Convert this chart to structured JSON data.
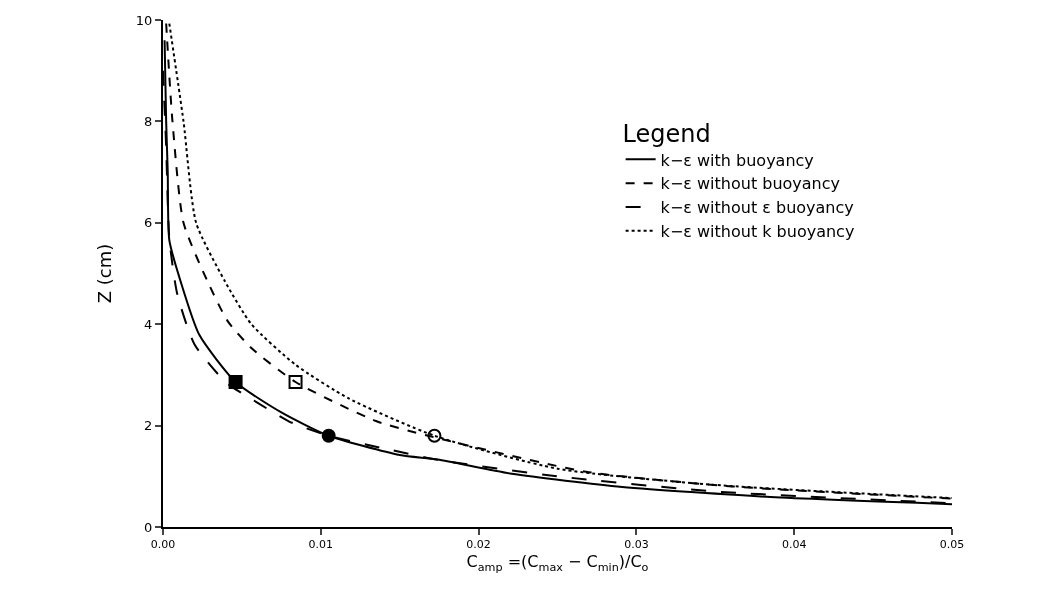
{
  "chart_data": {
    "type": "line",
    "xlabel": "C$_{amp}$ =(C$_{max}$ − C$_{min}$)/C$_{o}$",
    "ylabel": "Z (cm)",
    "legend_title": "Legend",
    "legend": "right",
    "grid": false,
    "xlim": [
      0,
      0.05
    ],
    "xticks": [
      {
        "value": 0,
        "label": "0.00"
      },
      0.01,
      0.02,
      0.03,
      0.04,
      0.05
    ],
    "ylim": [
      0,
      10
    ],
    "yticks": [
      0,
      2,
      4,
      6,
      8,
      10
    ],
    "series": [
      {
        "name": "k−ε with buoyancy",
        "color": "#000000",
        "line_style": "solid",
        "x": [
          0.0001,
          0.0002,
          0.0003,
          0.0004,
          0.0011,
          0.0023,
          0.0046,
          0.0075,
          0.0105,
          0.015,
          0.0174,
          0.0221,
          0.0291,
          0.0385,
          0.05
        ],
        "values": [
          9.6,
          8,
          7,
          5.66,
          4.86,
          3.79,
          2.86,
          2.26,
          1.8,
          1.42,
          1.33,
          1.05,
          0.79,
          0.59,
          0.45
        ]
      },
      {
        "name": "k−ε without buoyancy",
        "color": "#000000",
        "line_style": "dashed",
        "x": [
          0.0002,
          0.0006,
          0.0013,
          0.0028,
          0.0041,
          0.0056,
          0.0084,
          0.0135,
          0.0168,
          0.0268,
          0.0361,
          0.05
        ],
        "values": [
          9.93,
          8,
          6,
          4.86,
          4.06,
          3.53,
          2.86,
          2.09,
          1.8,
          1.09,
          0.8,
          0.56
        ]
      },
      {
        "name": "k−ε without ε buoyancy",
        "color": "#000000",
        "line_style": "long-dashed",
        "x": [
          0,
          0.0002,
          0.0004,
          0.0009,
          0.002,
          0.004,
          0.006,
          0.008,
          0.0105,
          0.014,
          0.0175,
          0.025,
          0.035,
          0.05
        ],
        "values": [
          9,
          7.5,
          5.7,
          4.6,
          3.6,
          2.85,
          2.45,
          2.08,
          1.8,
          1.55,
          1.32,
          1,
          0.7,
          0.47
        ]
      },
      {
        "name": "k−ε without k buoyancy",
        "color": "#000000",
        "line_style": "dotted",
        "x": [
          0.0004,
          0.0013,
          0.0021,
          0.0039,
          0.0056,
          0.0084,
          0.0118,
          0.0172,
          0.025,
          0.035,
          0.05
        ],
        "values": [
          9.93,
          8,
          6,
          4.86,
          4,
          3.2,
          2.53,
          1.8,
          1.15,
          0.83,
          0.57
        ]
      },
      {
        "type": "scatter",
        "marker": "square",
        "color": "#000000",
        "x": [
          0.0046
        ],
        "values": [
          2.86
        ]
      },
      {
        "type": "scatter",
        "marker": "square-open",
        "color": "#000000",
        "x": [
          0.0084
        ],
        "values": [
          2.86
        ]
      },
      {
        "type": "scatter",
        "marker": "circle",
        "color": "#000000",
        "x": [
          0.0105
        ],
        "values": [
          1.8
        ]
      },
      {
        "type": "scatter",
        "marker": "circle-open",
        "color": "#000000",
        "x": [
          0.0172
        ],
        "values": [
          1.8
        ]
      }
    ]
  }
}
